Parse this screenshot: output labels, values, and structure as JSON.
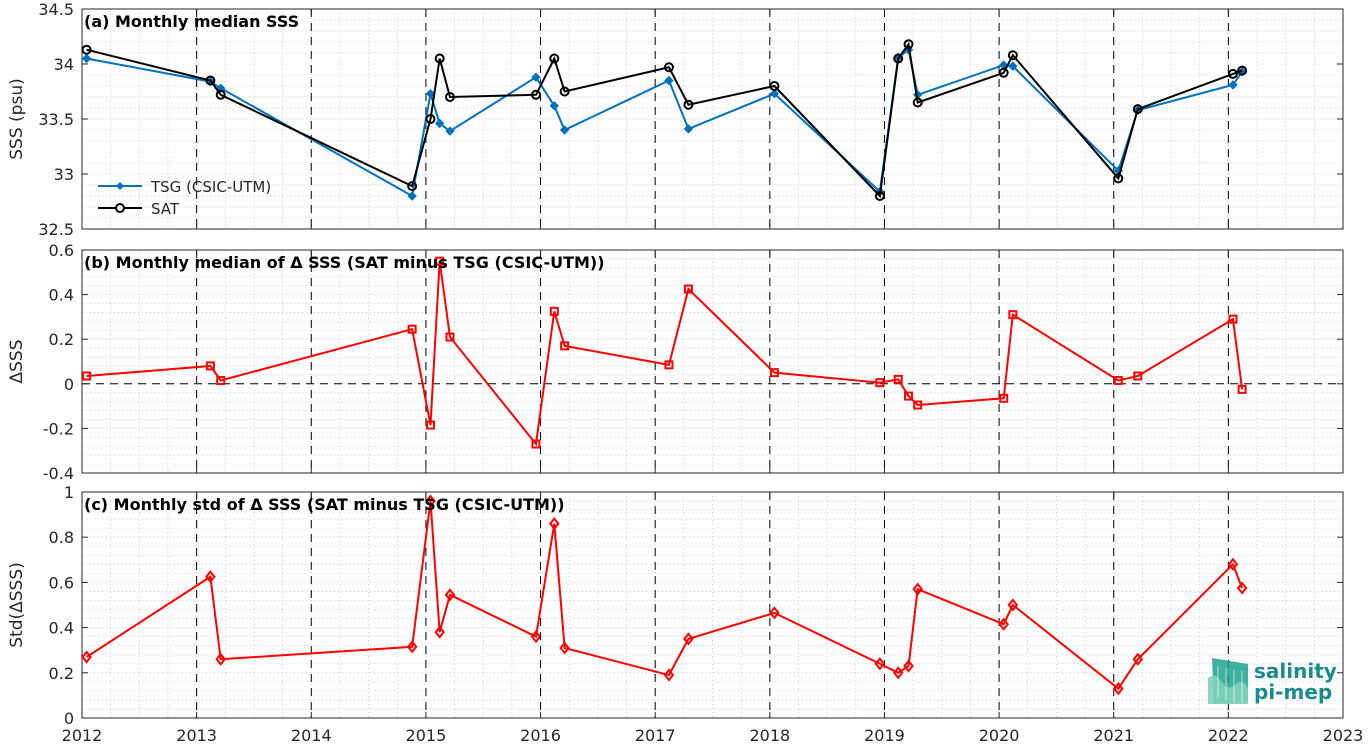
{
  "chart_data": [
    {
      "type": "line",
      "title": "(a) Monthly median SSS",
      "ylabel": "SSS (psu)",
      "xlim": [
        2012,
        2023
      ],
      "ylim": [
        32.5,
        34.5
      ],
      "yticks": [
        32.5,
        33,
        33.5,
        34,
        34.5
      ],
      "ytick_labels": [
        "32.5",
        "33",
        "33.5",
        "34",
        "34.5"
      ],
      "grid": true,
      "legend": "lower-left",
      "series": [
        {
          "name": "TSG (CSIC-UTM)",
          "color": "#0072bd",
          "marker": "dot",
          "x": [
            2012.04,
            2013.12,
            2013.21,
            2014.88,
            2015.04,
            2015.12,
            2015.21,
            2015.96,
            2016.12,
            2016.21,
            2017.12,
            2017.29,
            2018.04,
            2018.96,
            2019.12,
            2019.21,
            2019.29,
            2020.04,
            2020.12,
            2021.04,
            2021.21,
            2022.04,
            2022.12
          ],
          "values": [
            34.05,
            33.84,
            33.78,
            32.8,
            33.73,
            33.46,
            33.39,
            33.88,
            33.62,
            33.4,
            33.85,
            33.41,
            33.73,
            32.84,
            34.06,
            34.13,
            33.72,
            33.99,
            33.98,
            33.03,
            33.58,
            33.81,
            33.93
          ]
        },
        {
          "name": "SAT",
          "color": "#000000",
          "marker": "circle",
          "x": [
            2012.04,
            2013.12,
            2013.21,
            2014.88,
            2015.04,
            2015.12,
            2015.21,
            2015.96,
            2016.12,
            2016.21,
            2017.12,
            2017.29,
            2018.04,
            2018.96,
            2019.12,
            2019.21,
            2019.29,
            2020.04,
            2020.12,
            2021.04,
            2021.21,
            2022.04,
            2022.12
          ],
          "values": [
            34.13,
            33.85,
            33.72,
            32.89,
            33.5,
            34.05,
            33.7,
            33.72,
            34.05,
            33.75,
            33.97,
            33.63,
            33.8,
            32.8,
            34.05,
            34.18,
            33.65,
            33.92,
            34.08,
            32.96,
            33.59,
            33.91,
            33.94
          ]
        }
      ]
    },
    {
      "type": "line",
      "title": "(b) Monthly median of Δ SSS (SAT minus TSG (CSIC-UTM))",
      "ylabel": "ΔSSS",
      "xlim": [
        2012,
        2023
      ],
      "ylim": [
        -0.4,
        0.6
      ],
      "yticks": [
        -0.4,
        -0.2,
        0,
        0.2,
        0.4,
        0.6
      ],
      "ytick_labels": [
        "-0.4",
        "-0.2",
        "0",
        "0.2",
        "0.4",
        "0.6"
      ],
      "grid": true,
      "zero_line": true,
      "series": [
        {
          "color": "#ff0000",
          "marker": "square",
          "x": [
            2012.04,
            2013.12,
            2013.21,
            2014.88,
            2015.04,
            2015.12,
            2015.21,
            2015.96,
            2016.12,
            2016.21,
            2017.12,
            2017.29,
            2018.04,
            2018.96,
            2019.12,
            2019.21,
            2019.29,
            2020.04,
            2020.12,
            2021.04,
            2021.21,
            2022.04,
            2022.12
          ],
          "values": [
            0.035,
            0.08,
            0.015,
            0.245,
            -0.185,
            0.55,
            0.21,
            -0.27,
            0.325,
            0.17,
            0.085,
            0.425,
            0.05,
            0.005,
            0.02,
            -0.055,
            -0.095,
            -0.065,
            0.31,
            0.015,
            0.035,
            0.29,
            -0.025
          ]
        }
      ]
    },
    {
      "type": "line",
      "title": "(c) Monthly std of Δ SSS (SAT minus TSG (CSIC-UTM))",
      "ylabel": "Std(ΔSSS)",
      "xlabel": "",
      "xlim": [
        2012,
        2023
      ],
      "ylim": [
        0,
        1
      ],
      "yticks": [
        0,
        0.2,
        0.4,
        0.6,
        0.8,
        1
      ],
      "ytick_labels": [
        "0",
        "0.2",
        "0.4",
        "0.6",
        "0.8",
        "1"
      ],
      "grid": true,
      "series": [
        {
          "color": "#ff0000",
          "marker": "diamond",
          "x": [
            2012.04,
            2013.12,
            2013.21,
            2014.88,
            2015.04,
            2015.12,
            2015.21,
            2015.96,
            2016.12,
            2016.21,
            2017.12,
            2017.29,
            2018.04,
            2018.96,
            2019.12,
            2019.21,
            2019.29,
            2020.04,
            2020.12,
            2021.04,
            2021.21,
            2022.04,
            2022.12
          ],
          "values": [
            0.27,
            0.625,
            0.26,
            0.315,
            0.96,
            0.38,
            0.545,
            0.36,
            0.86,
            0.31,
            0.19,
            0.35,
            0.465,
            0.24,
            0.2,
            0.23,
            0.57,
            0.415,
            0.5,
            0.13,
            0.26,
            0.68,
            0.575
          ]
        }
      ]
    }
  ],
  "xticks": [
    2012,
    2013,
    2014,
    2015,
    2016,
    2017,
    2018,
    2019,
    2020,
    2021,
    2022,
    2023
  ],
  "xtick_labels": [
    "2012",
    "2013",
    "2014",
    "2015",
    "2016",
    "2017",
    "2018",
    "2019",
    "2020",
    "2021",
    "2022",
    "2023"
  ],
  "logo": {
    "line1": "salinity",
    "line2": "pi-mep",
    "color": "#1a8c8c"
  }
}
